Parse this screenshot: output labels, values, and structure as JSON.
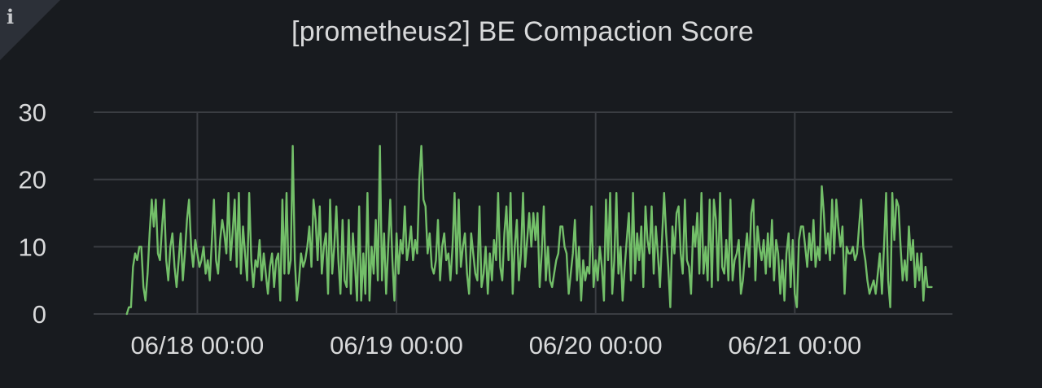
{
  "panel": {
    "title": "[prometheus2] BE Compaction Score",
    "info_icon": "info-icon"
  },
  "colors": {
    "background": "#181b1f",
    "grid": "#3a3d42",
    "series": "#73bf69",
    "text": "#d8d9da"
  },
  "chart_data": {
    "type": "line",
    "title": "[prometheus2] BE Compaction Score",
    "xlabel": "",
    "ylabel": "",
    "ylim": [
      0,
      30
    ],
    "xlim": [
      -12.5,
      91
    ],
    "x_unit": "hours since 06/18 00:00",
    "y_ticks": [
      "0",
      "10",
      "20",
      "30"
    ],
    "x_ticks": [
      {
        "value": 0,
        "label": "06/18 00:00"
      },
      {
        "value": 24,
        "label": "06/19 00:00"
      },
      {
        "value": 48,
        "label": "06/20 00:00"
      },
      {
        "value": 72,
        "label": "06/21 00:00"
      }
    ],
    "grid": true,
    "legend": "none",
    "series": [
      {
        "name": "",
        "x_start": -8.5,
        "x_step": 0.25,
        "values": [
          0,
          1,
          1,
          7,
          9,
          8,
          10,
          10,
          4,
          2,
          6,
          12,
          17,
          13,
          17,
          9,
          8,
          13,
          17,
          8,
          5,
          10,
          12,
          7,
          4,
          8,
          12,
          5,
          9,
          14,
          17,
          10,
          7,
          11,
          9,
          7,
          8,
          10,
          6,
          8,
          5,
          11,
          17,
          8,
          6,
          11,
          14,
          12,
          9,
          18,
          8,
          12,
          17,
          7,
          18,
          6,
          13,
          9,
          5,
          18,
          8,
          4,
          8,
          7,
          11,
          5,
          9,
          6,
          3,
          7,
          9,
          4,
          8,
          9,
          2,
          17,
          6,
          18,
          6,
          8,
          25,
          8,
          2,
          5,
          9,
          7,
          8,
          10,
          13,
          7,
          17,
          14,
          8,
          16,
          6,
          10,
          12,
          3,
          17,
          6,
          10,
          16,
          8,
          3,
          14,
          5,
          4,
          14,
          3,
          12,
          7,
          2,
          16,
          2,
          9,
          3,
          18,
          2,
          10,
          6,
          14,
          5,
          25,
          5,
          12,
          3,
          10,
          17,
          8,
          2,
          12,
          6,
          11,
          9,
          16,
          8,
          10,
          13,
          8,
          11,
          9,
          20,
          25,
          17,
          16,
          9,
          12,
          7,
          6,
          8,
          14,
          5,
          10,
          12,
          8,
          9,
          5,
          10,
          18,
          6,
          17,
          7,
          10,
          12,
          6,
          3,
          12,
          9,
          6,
          5,
          16,
          4,
          6,
          10,
          3,
          9,
          5,
          11,
          8,
          18,
          7,
          5,
          12,
          16,
          8,
          18,
          3,
          10,
          14,
          5,
          9,
          18,
          7,
          11,
          15,
          10,
          15,
          11,
          15,
          4,
          9,
          16,
          5,
          10,
          5,
          4,
          6,
          8,
          9,
          13,
          13,
          10,
          9,
          3,
          6,
          9,
          14,
          5,
          10,
          2,
          8,
          5,
          7,
          6,
          16,
          4,
          8,
          5,
          10,
          7,
          2,
          17,
          8,
          18,
          3,
          8,
          18,
          6,
          10,
          2,
          7,
          11,
          15,
          5,
          18,
          6,
          12,
          8,
          13,
          4,
          16,
          11,
          9,
          16,
          6,
          13,
          9,
          4,
          11,
          18,
          12,
          7,
          1,
          13,
          9,
          15,
          16,
          9,
          6,
          17,
          8,
          7,
          3,
          13,
          10,
          15,
          6,
          18,
          6,
          10,
          5,
          17,
          4,
          17,
          14,
          5,
          18,
          7,
          6,
          11,
          5,
          17,
          5,
          8,
          9,
          11,
          3,
          5,
          9,
          12,
          7,
          15,
          17,
          5,
          13,
          10,
          8,
          11,
          6,
          12,
          7,
          14,
          5,
          11,
          9,
          3,
          8,
          2,
          9,
          12,
          4,
          11,
          3,
          1,
          11,
          13,
          13,
          10,
          7,
          12,
          8,
          14,
          7,
          10,
          8,
          19,
          15,
          9,
          12,
          8,
          17,
          9,
          17,
          13,
          10,
          13,
          3,
          10,
          9,
          9,
          10,
          8,
          9,
          13,
          17,
          10,
          8,
          5,
          3,
          4,
          5,
          3,
          6,
          9,
          3,
          10,
          18,
          5,
          1,
          18,
          11,
          17,
          16,
          10,
          5,
          8,
          5,
          13,
          8,
          11,
          4,
          9,
          5,
          9,
          2,
          7,
          4,
          4,
          4
        ]
      }
    ]
  }
}
